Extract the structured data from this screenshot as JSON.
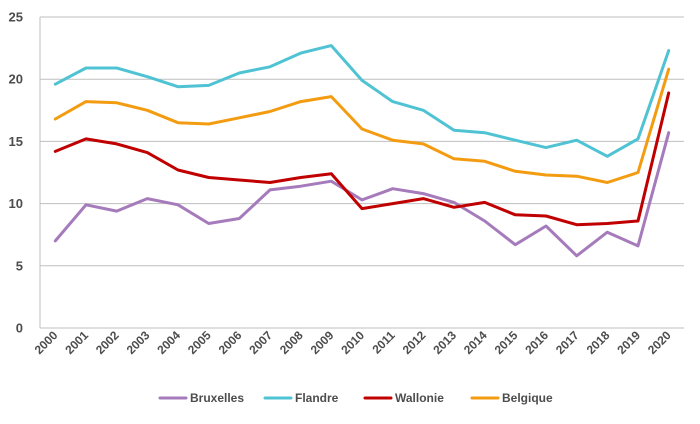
{
  "chart_data": {
    "type": "line",
    "title": "",
    "xlabel": "",
    "ylabel": "",
    "x": [
      "2000",
      "2001",
      "2002",
      "2003",
      "2004",
      "2005",
      "2006",
      "2007",
      "2008",
      "2009",
      "2010",
      "2011",
      "2012",
      "2013",
      "2014",
      "2015",
      "2016",
      "2017",
      "2018",
      "2019",
      "2020"
    ],
    "ylim": [
      0,
      25
    ],
    "yticks": [
      "0",
      "5",
      "10",
      "15",
      "20",
      "25"
    ],
    "grid": true,
    "legend_position": "bottom",
    "series": [
      {
        "name": "Bruxelles",
        "color": "#a57bbb",
        "values": [
          7.0,
          9.9,
          9.4,
          10.4,
          9.9,
          8.4,
          8.8,
          11.1,
          11.4,
          11.8,
          10.3,
          11.2,
          10.8,
          10.1,
          8.6,
          6.7,
          8.2,
          5.8,
          7.7,
          6.6,
          15.7
        ]
      },
      {
        "name": "Flandre",
        "color": "#4fc3d3",
        "values": [
          19.6,
          20.9,
          20.9,
          20.2,
          19.4,
          19.5,
          20.5,
          21.0,
          22.1,
          22.7,
          19.9,
          18.2,
          17.5,
          15.9,
          15.7,
          15.1,
          14.5,
          15.1,
          13.8,
          15.2,
          22.3
        ]
      },
      {
        "name": "Wallonie",
        "color": "#c00000",
        "values": [
          14.2,
          15.2,
          14.8,
          14.1,
          12.7,
          12.1,
          11.9,
          11.7,
          12.1,
          12.4,
          9.6,
          10.0,
          10.4,
          9.7,
          10.1,
          9.1,
          9.0,
          8.3,
          8.4,
          8.6,
          18.9
        ]
      },
      {
        "name": "Belgique",
        "color": "#f39c12",
        "values": [
          16.8,
          18.2,
          18.1,
          17.5,
          16.5,
          16.4,
          16.9,
          17.4,
          18.2,
          18.6,
          16.0,
          15.1,
          14.8,
          13.6,
          13.4,
          12.6,
          12.3,
          12.2,
          11.7,
          12.5,
          20.8
        ]
      }
    ]
  }
}
